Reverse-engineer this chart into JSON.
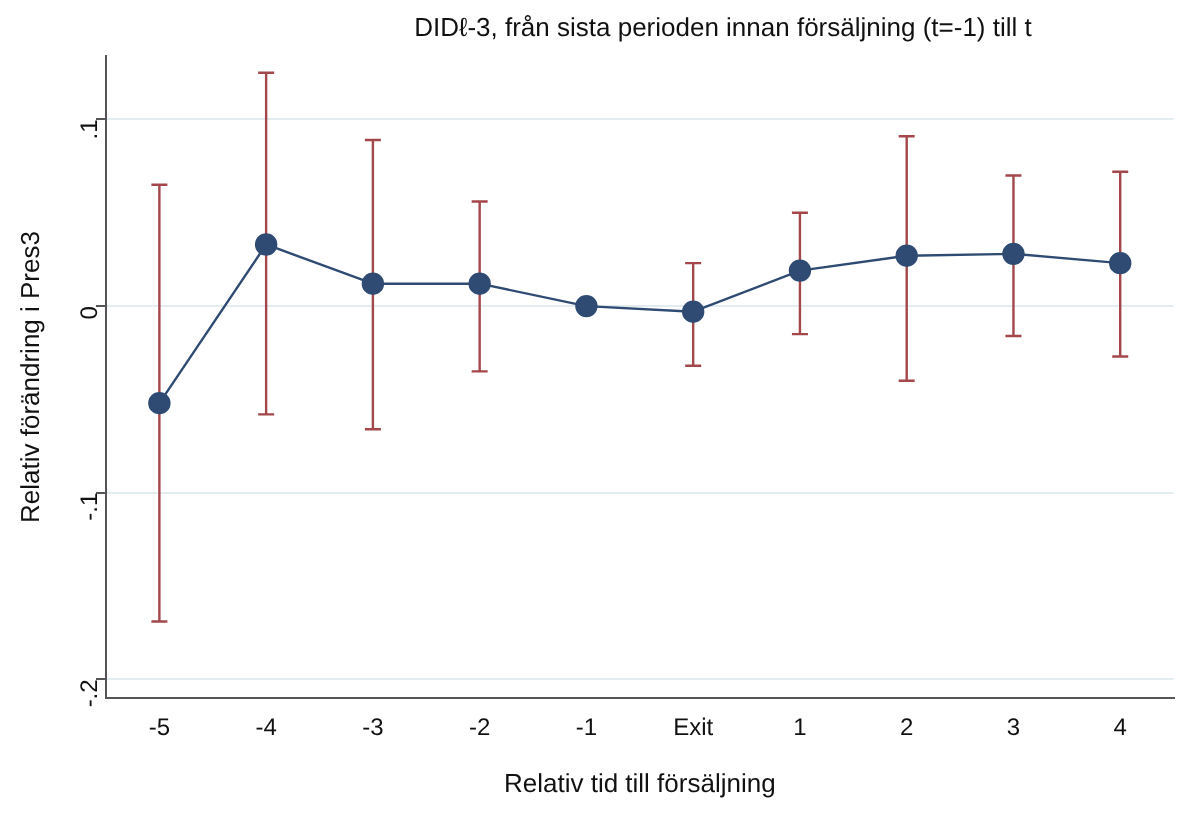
{
  "chart_data": {
    "type": "line",
    "title": "DIDℓ-3, från sista perioden innan försäljning (t=-1) till t",
    "xlabel": "Relativ tid till försäljning",
    "ylabel": "Relativ förändring i Pres3",
    "categories": [
      "-5",
      "-4",
      "-3",
      "-2",
      "-1",
      "Exit",
      "1",
      "2",
      "3",
      "4"
    ],
    "series": [
      {
        "color": "#2f4b73",
        "values": [
          -0.052,
          0.033,
          0.012,
          0.012,
          0,
          -0.003,
          0.019,
          0.027,
          0.028,
          0.023
        ],
        "errors": [
          [
            -0.169,
            0.065
          ],
          [
            -0.058,
            0.125
          ],
          [
            -0.066,
            0.089
          ],
          [
            -0.035,
            0.056
          ],
          null,
          [
            -0.032,
            0.023
          ],
          [
            -0.015,
            0.05
          ],
          [
            -0.04,
            0.091
          ],
          [
            -0.016,
            0.07
          ],
          [
            -0.027,
            0.072
          ]
        ]
      }
    ],
    "ylim": [
      -0.21,
      0.134
    ],
    "yticks": [
      {
        "value": -0.2,
        "label": "-.2"
      },
      {
        "value": -0.1,
        "label": "-.1"
      },
      {
        "value": 0,
        "label": "0"
      },
      {
        "value": 0.1,
        "label": ".1"
      }
    ],
    "grid": "y",
    "marker": "circle",
    "line_style": "solid",
    "legend": false
  }
}
